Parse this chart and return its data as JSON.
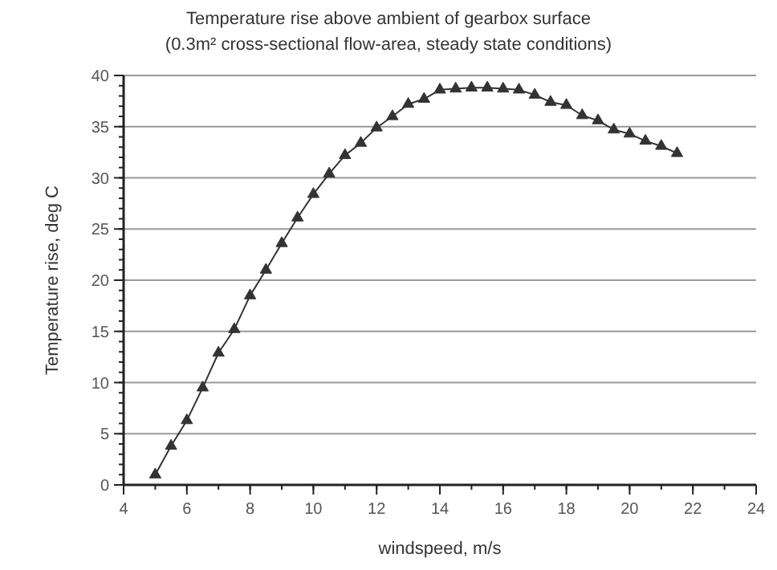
{
  "chart_data": {
    "type": "line",
    "title": "Temperature rise above ambient of gearbox surface",
    "subtitle": "(0.3m² cross-sectional flow-area, steady state conditions)",
    "xlabel": "windspeed, m/s",
    "ylabel": "Temperature rise, deg C",
    "x": [
      5,
      5.5,
      6,
      6.5,
      7,
      7.5,
      8,
      8.5,
      9,
      9.5,
      10,
      10.5,
      11,
      11.5,
      12,
      12.5,
      13,
      13.5,
      14,
      14.5,
      15,
      15.5,
      16,
      16.5,
      17,
      17.5,
      18,
      18.5,
      19,
      19.5,
      20,
      20.5,
      21,
      21.5
    ],
    "series": [
      {
        "color": "#333333",
        "values": [
          1.0,
          3.8,
          6.3,
          9.5,
          12.9,
          15.2,
          18.5,
          21.0,
          23.6,
          26.1,
          28.4,
          30.4,
          32.2,
          33.4,
          34.9,
          36.0,
          37.2,
          37.7,
          38.6,
          38.7,
          38.8,
          38.8,
          38.7,
          38.6,
          38.1,
          37.4,
          37.1,
          36.1,
          35.6,
          34.7,
          34.3,
          33.6,
          33.1,
          32.4
        ]
      }
    ],
    "xlim": [
      4,
      24
    ],
    "xticks": [
      4,
      6,
      8,
      10,
      12,
      14,
      16,
      18,
      20,
      22,
      24
    ],
    "ylim": [
      0,
      40
    ],
    "yticks": [
      0,
      5,
      10,
      15,
      20,
      25,
      30,
      35,
      40
    ],
    "grid": "y",
    "marker": "triangle",
    "line_style": "solid"
  }
}
